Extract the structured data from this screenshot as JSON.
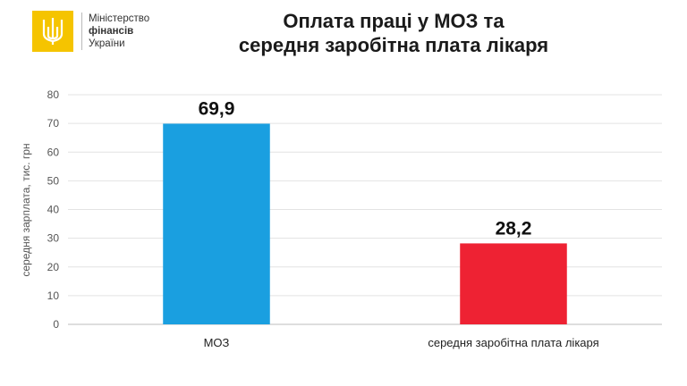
{
  "brand": {
    "line1": "Міністерство",
    "line2": "фінансів",
    "line3": "України",
    "color": "#f5c400",
    "icon": "trident-icon"
  },
  "chart_data": {
    "type": "bar",
    "title": "Оплата праці у МОЗ та середня заробітна плата лікаря",
    "title_lines": [
      "Оплата праці у МОЗ та",
      "середня заробітна плата лікаря"
    ],
    "xlabel": "",
    "ylabel": "середня зарплата, тис. грн",
    "ylim": [
      0,
      80
    ],
    "yticks": [
      0,
      10,
      20,
      30,
      40,
      50,
      60,
      70,
      80
    ],
    "grid": true,
    "categories": [
      "МОЗ",
      "середня заробітна плата лікаря"
    ],
    "values": [
      69.9,
      28.2
    ],
    "value_labels": [
      "69,9",
      "28,2"
    ],
    "colors": [
      "#1a9fe0",
      "#ee2233"
    ]
  }
}
